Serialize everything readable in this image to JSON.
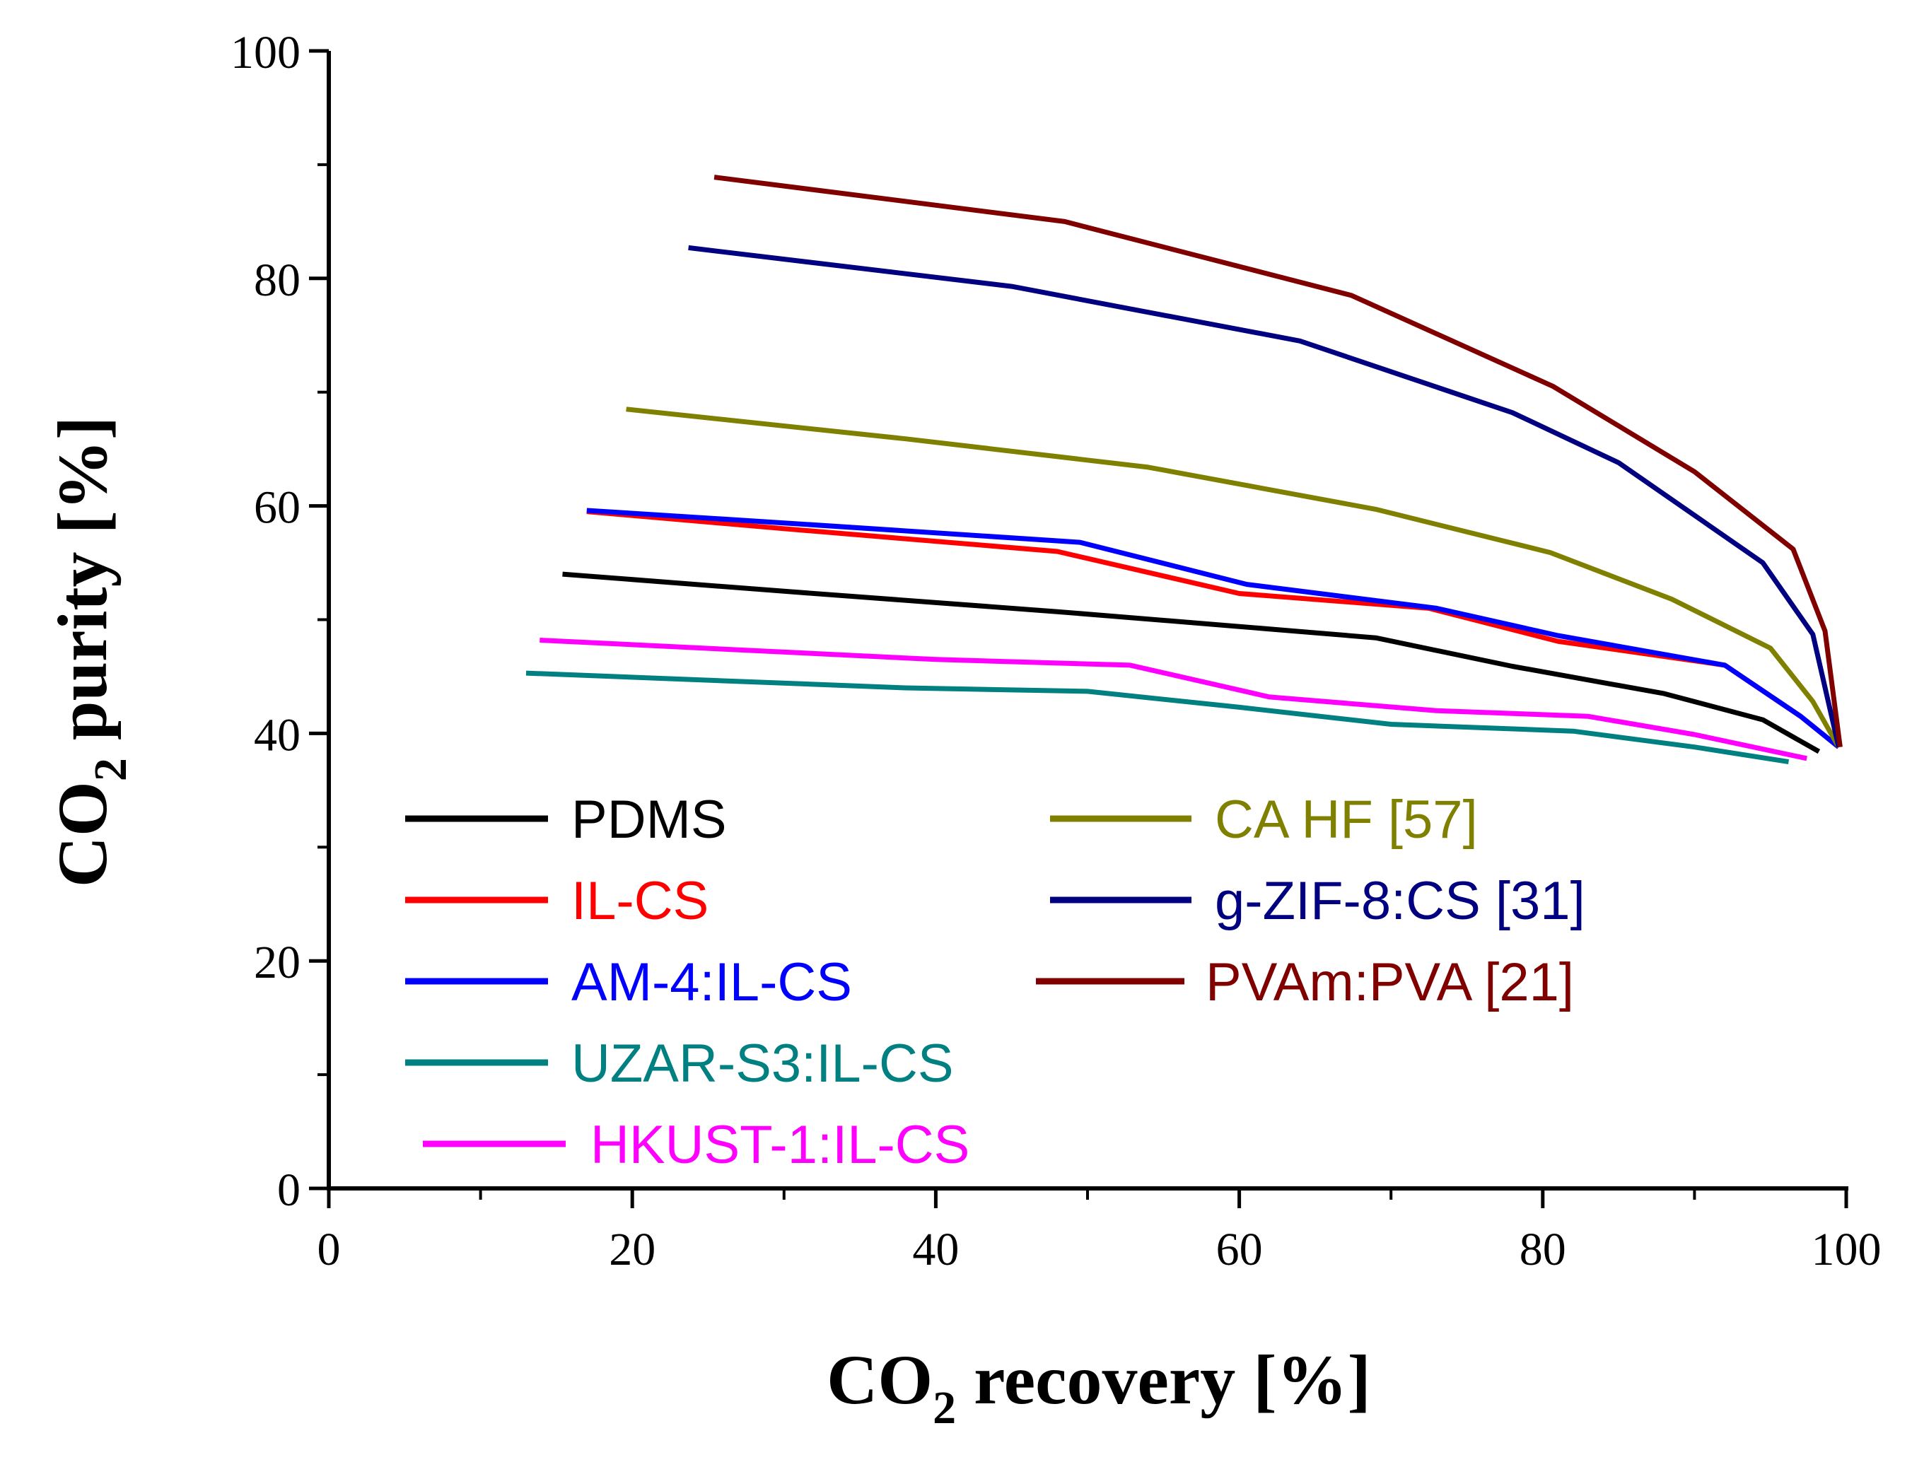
{
  "chart_data": {
    "type": "line",
    "xlabel": {
      "pre": "CO",
      "sub": "2",
      "post": " recovery [%]"
    },
    "ylabel": {
      "pre": "CO",
      "sub": "2",
      "post": " purity [%]"
    },
    "xlim": [
      0,
      100
    ],
    "ylim": [
      0,
      100
    ],
    "xticks": [
      0,
      20,
      40,
      60,
      80,
      100
    ],
    "yticks": [
      0,
      20,
      40,
      60,
      80,
      100
    ],
    "xtick_labels": [
      "0",
      "20",
      "40",
      "60",
      "80",
      "100"
    ],
    "ytick_labels": [
      "0",
      "20",
      "40",
      "60",
      "80",
      "100"
    ],
    "grid": false,
    "legend_position": "lower-left",
    "series": [
      {
        "name": "PDMS",
        "color": "#000000",
        "x": [
          15.4,
          30,
          48,
          60,
          69,
          78,
          88,
          94.5,
          98.2
        ],
        "y": [
          54,
          52.5,
          50.7,
          49.4,
          48.4,
          45.9,
          43.5,
          41.2,
          38.4
        ]
      },
      {
        "name": "IL-CS",
        "color": "#ff0000",
        "x": [
          17,
          30,
          48,
          60,
          72.5,
          81,
          92,
          97,
          99.5
        ],
        "y": [
          59.5,
          58,
          56,
          52.3,
          51,
          48.1,
          46,
          41.5,
          38.8
        ]
      },
      {
        "name": "AM-4:IL-CS",
        "color": "#0000ff",
        "x": [
          17,
          30,
          49.5,
          60.5,
          73,
          81,
          92,
          97,
          99.5
        ],
        "y": [
          59.6,
          58.5,
          56.8,
          53.1,
          51,
          48.6,
          46,
          41.5,
          38.8
        ]
      },
      {
        "name": "UZAR-S3:IL-CS",
        "color": "#008080",
        "x": [
          13,
          38,
          50,
          60,
          70,
          82,
          90,
          96.2
        ],
        "y": [
          45.3,
          44,
          43.7,
          42.3,
          40.8,
          40.2,
          38.8,
          37.5
        ]
      },
      {
        "name": "HKUST-1:IL-CS",
        "color": "#ff00ff",
        "x": [
          13.9,
          40,
          52.8,
          62,
          73,
          83,
          90,
          97.4
        ],
        "y": [
          48.2,
          46.5,
          46,
          43.2,
          42,
          41.5,
          39.9,
          37.8
        ]
      },
      {
        "name": "CA HF [57]",
        "color": "#808000",
        "x": [
          19.6,
          38,
          54,
          69,
          80.5,
          88.5,
          95,
          97.8,
          99.5
        ],
        "y": [
          68.5,
          65.9,
          63.4,
          59.7,
          55.9,
          51.8,
          47.5,
          42.8,
          38.8
        ]
      },
      {
        "name": "g-ZIF-8:CS [31]",
        "color": "#000080",
        "x": [
          23.7,
          45,
          64,
          78,
          85,
          94.5,
          97.8,
          99.5
        ],
        "y": [
          82.7,
          79.3,
          74.5,
          68.2,
          63.8,
          55,
          48.7,
          38.8
        ]
      },
      {
        "name": "PVAm:PVA [21]",
        "color": "#800000",
        "x": [
          25.4,
          48.5,
          67.4,
          80.7,
          90,
          96.5,
          98.6,
          99.6
        ],
        "y": [
          88.9,
          85,
          78.5,
          70.5,
          63,
          56.2,
          49,
          38.8
        ]
      }
    ]
  }
}
